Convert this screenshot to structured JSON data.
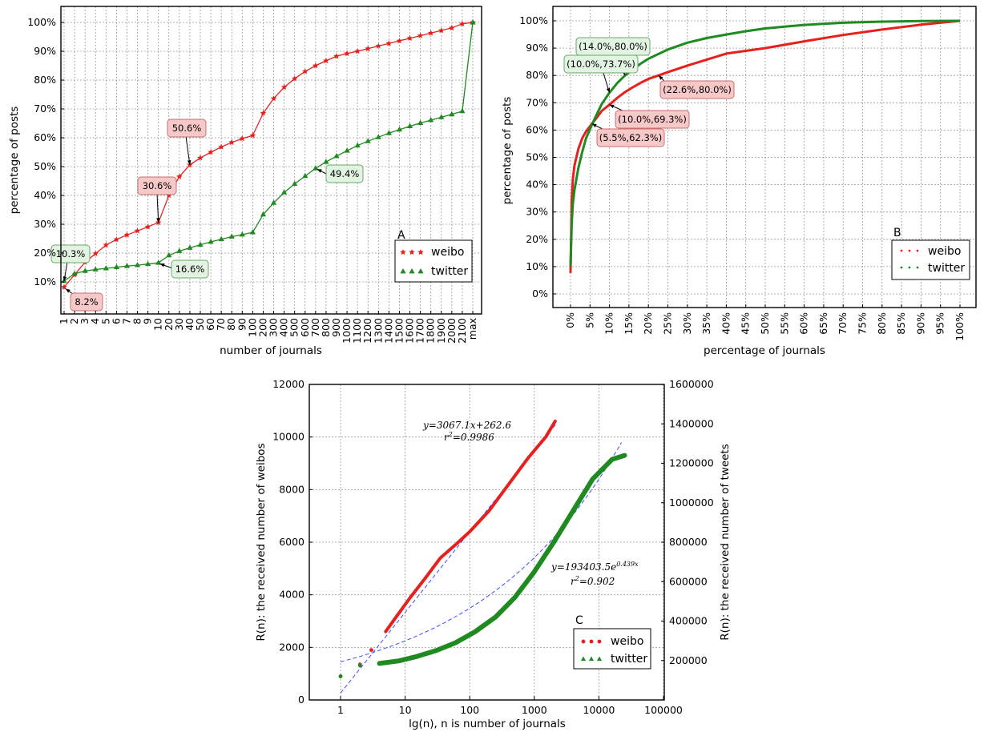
{
  "chart_data": [
    {
      "panel": "A",
      "type": "line",
      "xlabel": "number of journals",
      "ylabel": "percentage of posts",
      "ylim": [
        0,
        100
      ],
      "yticks": [
        "10%",
        "20%",
        "30%",
        "40%",
        "50%",
        "60%",
        "70%",
        "80%",
        "90%",
        "100%"
      ],
      "x_categories": [
        "1",
        "2",
        "3",
        "4",
        "5",
        "6",
        "7",
        "8",
        "9",
        "10",
        "20",
        "30",
        "40",
        "50",
        "60",
        "70",
        "80",
        "90",
        "100",
        "200",
        "300",
        "400",
        "500",
        "600",
        "700",
        "800",
        "900",
        "1000",
        "1100",
        "1200",
        "1300",
        "1400",
        "1500",
        "1600",
        "1700",
        "1800",
        "1900",
        "2000",
        "2100",
        "max"
      ],
      "grid": true,
      "legend_position": "bottom-right",
      "series": [
        {
          "name": "weibo",
          "color": "#e8201c",
          "marker": "star",
          "values": [
            8.2,
            12.5,
            16.8,
            19.8,
            22.8,
            24.7,
            26.3,
            27.7,
            29.1,
            30.6,
            40.0,
            46.5,
            50.6,
            53.0,
            55.0,
            56.8,
            58.4,
            59.7,
            60.8,
            68.5,
            73.6,
            77.5,
            80.5,
            83.0,
            85.0,
            86.7,
            88.3,
            89.2,
            90.0,
            90.9,
            91.8,
            92.7,
            93.6,
            94.5,
            95.4,
            96.3,
            97.2,
            98.1,
            99.5,
            100.0
          ]
        },
        {
          "name": "twitter",
          "color": "#1f8a1f",
          "marker": "triangle",
          "values": [
            10.3,
            12.8,
            13.8,
            14.3,
            14.7,
            15.1,
            15.5,
            15.8,
            16.2,
            16.6,
            19.2,
            20.7,
            21.8,
            22.9,
            23.9,
            24.8,
            25.7,
            26.4,
            27.2,
            33.4,
            37.4,
            41.0,
            44.0,
            46.7,
            49.4,
            51.6,
            53.6,
            55.5,
            57.3,
            58.8,
            60.2,
            61.6,
            62.8,
            64.0,
            65.1,
            66.1,
            67.1,
            68.1,
            69.2,
            100.0
          ]
        }
      ],
      "annotations": [
        {
          "text": "10.3%",
          "series": "twitter"
        },
        {
          "text": "8.2%",
          "series": "weibo"
        },
        {
          "text": "30.6%",
          "series": "weibo"
        },
        {
          "text": "50.6%",
          "series": "weibo"
        },
        {
          "text": "16.6%",
          "series": "twitter"
        },
        {
          "text": "49.4%",
          "series": "twitter"
        }
      ]
    },
    {
      "panel": "B",
      "type": "line",
      "xlabel": "percentage of journals",
      "ylabel": "percentage of posts",
      "xlim": [
        0,
        100
      ],
      "ylim": [
        -3,
        103
      ],
      "xticks": [
        "0%",
        "5%",
        "10%",
        "15%",
        "20%",
        "25%",
        "30%",
        "35%",
        "40%",
        "45%",
        "50%",
        "55%",
        "60%",
        "65%",
        "70%",
        "75%",
        "80%",
        "85%",
        "90%",
        "95%",
        "100%"
      ],
      "yticks": [
        "0%",
        "10%",
        "20%",
        "30%",
        "40%",
        "50%",
        "60%",
        "70%",
        "80%",
        "90%",
        "100%"
      ],
      "grid": true,
      "legend_position": "bottom-right",
      "series": [
        {
          "name": "weibo",
          "color": "#e8201c",
          "x": [
            0,
            0.3,
            0.6,
            1,
            2,
            3,
            4,
            5.5,
            7,
            8,
            10,
            12,
            14,
            16,
            18,
            20,
            22.6,
            25,
            30,
            35,
            40,
            50,
            60,
            70,
            80,
            90,
            100
          ],
          "values": [
            8,
            34,
            42,
            47,
            53,
            57,
            59.5,
            62.3,
            65,
            67,
            69.3,
            71.8,
            73.9,
            75.7,
            77.3,
            78.7,
            80,
            81.2,
            83.6,
            85.8,
            88,
            90,
            92.5,
            94.8,
            96.8,
            98.6,
            100
          ]
        },
        {
          "name": "twitter",
          "color": "#1f8a1f",
          "x": [
            0,
            0.3,
            0.6,
            1,
            2,
            3,
            4,
            5.5,
            7,
            8,
            10,
            12,
            14,
            16,
            18,
            20,
            25,
            30,
            35,
            40,
            45,
            50,
            55,
            60,
            70,
            80,
            90,
            100
          ],
          "values": [
            10.3,
            26,
            33,
            38,
            46,
            52,
            57,
            62,
            66.5,
            69.5,
            73.7,
            77.2,
            80,
            82.3,
            84.3,
            86.1,
            89.5,
            92,
            93.7,
            95,
            96.2,
            97.2,
            97.9,
            98.5,
            99.3,
            99.7,
            99.9,
            100
          ]
        }
      ],
      "annotations": [
        {
          "text": "(14.0%,80.0%)",
          "series": "twitter"
        },
        {
          "text": "(10.0%,73.7%)",
          "series": "twitter"
        },
        {
          "text": "(22.6%,80.0%)",
          "series": "weibo"
        },
        {
          "text": "(10.0%,69.3%)",
          "series": "weibo"
        },
        {
          "text": "(5.5%,62.3%)",
          "series": "weibo"
        }
      ]
    },
    {
      "panel": "C",
      "type": "scatter",
      "xlabel": "lg(n), n is number of journals",
      "ylabel": "R(n): the received number of weibos",
      "y2label": "R(n): the received number of tweets",
      "x_scale": "log",
      "xlim": [
        0.3,
        100000
      ],
      "xticks": [
        "1",
        "10",
        "100",
        "1000",
        "10000",
        "100000"
      ],
      "ylim": [
        0,
        12000
      ],
      "yticks": [
        "0",
        "2000",
        "4000",
        "6000",
        "8000",
        "10000",
        "12000"
      ],
      "y2lim": [
        0,
        1600000
      ],
      "y2ticks": [
        "200000",
        "400000",
        "600000",
        "800000",
        "1000000",
        "1200000",
        "1400000",
        "1600000"
      ],
      "grid": true,
      "legend_position": "bottom-right",
      "series": [
        {
          "name": "weibo",
          "color": "#e8201c",
          "axis": "left",
          "x": [
            1,
            2,
            3,
            5,
            8,
            12,
            20,
            35,
            60,
            100,
            200,
            400,
            800,
            1500,
            2100
          ],
          "values": [
            900,
            1350,
            1900,
            2600,
            3300,
            3900,
            4600,
            5400,
            5900,
            6400,
            7200,
            8200,
            9200,
            10000,
            10600
          ]
        },
        {
          "name": "twitter",
          "color": "#1f8a1f",
          "axis": "right",
          "x": [
            1,
            2,
            4,
            8,
            15,
            30,
            60,
            120,
            250,
            500,
            1000,
            2000,
            4000,
            8000,
            16000,
            25000
          ],
          "values": [
            120000,
            175000,
            185000,
            198000,
            220000,
            250000,
            290000,
            345000,
            420000,
            520000,
            650000,
            800000,
            960000,
            1120000,
            1220000,
            1240000
          ]
        }
      ],
      "fits": [
        {
          "series": "weibo",
          "equation": "y = 3067.1x + 262.6",
          "r2": "r² = 0.9986"
        },
        {
          "series": "twitter",
          "equation": "y = 193403.5e^{0.439x}",
          "r2": "r² = 0.902"
        }
      ]
    }
  ],
  "eqs": {
    "weibo_eq": "y=3067.1x+262.6",
    "weibo_r2_base": "r",
    "weibo_r2_exp": "2",
    "weibo_r2_val": "=0.9986",
    "twitter_eq": "y=193403.5e",
    "twitter_eq_exp": "0.439x",
    "twitter_r2_base": "r",
    "twitter_r2_exp": "2",
    "twitter_r2_val": "=0.902"
  },
  "colors": {
    "weibo": "#e8201c",
    "twitter": "#1f8a1f",
    "fit": "#3b4cff",
    "weibo_box_fill": "#f6c8c8",
    "twitter_box_fill": "#e2f3e2"
  }
}
